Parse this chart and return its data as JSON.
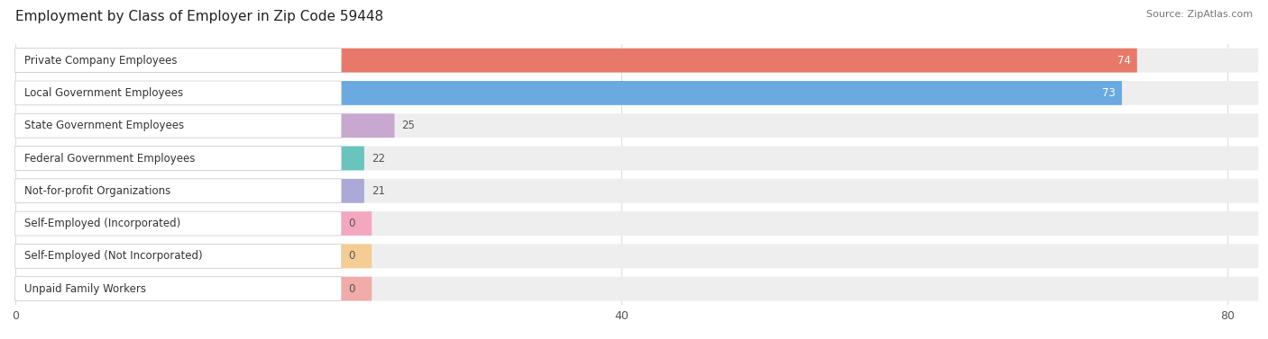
{
  "title": "Employment by Class of Employer in Zip Code 59448",
  "source": "Source: ZipAtlas.com",
  "categories": [
    "Private Company Employees",
    "Local Government Employees",
    "State Government Employees",
    "Federal Government Employees",
    "Not-for-profit Organizations",
    "Self-Employed (Incorporated)",
    "Self-Employed (Not Incorporated)",
    "Unpaid Family Workers"
  ],
  "values": [
    74,
    73,
    25,
    22,
    21,
    0,
    0,
    0
  ],
  "bar_colors": [
    "#e8796a",
    "#6aaae0",
    "#c8a8d0",
    "#68c4bc",
    "#aca8d8",
    "#f4a8c0",
    "#f4cc94",
    "#f0aca8"
  ],
  "row_bg_color": "#eeeeee",
  "row_pill_color": "#f4f4f4",
  "label_box_color": "#ffffff",
  "xlim_max": 82,
  "xticks": [
    0,
    40,
    80
  ],
  "bar_height": 0.68,
  "label_fontsize": 8.5,
  "value_fontsize": 8.5,
  "title_fontsize": 11,
  "bg_color": "#ffffff",
  "grid_color": "#dddddd"
}
